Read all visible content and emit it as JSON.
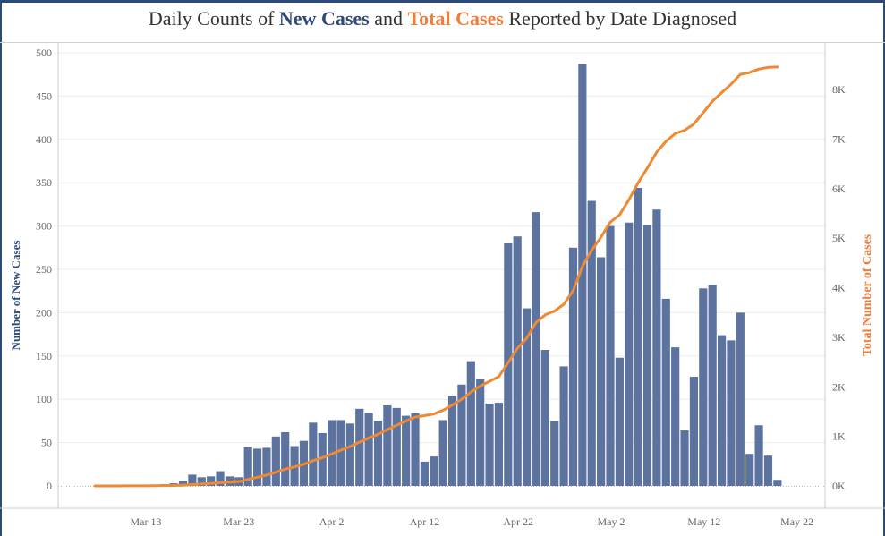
{
  "title": {
    "prefix": "Daily Counts of ",
    "series1": "New Cases",
    "middle": " and ",
    "series2": "Total Cases",
    "suffix": " Reported by Date Diagnosed"
  },
  "colors": {
    "bars": "#5b739e",
    "line": "#ee8a33",
    "new_cases_title": "#2e4a7b",
    "total_cases_title": "#ef7c3a"
  },
  "chart_data": {
    "type": "bar",
    "title": "Daily Counts of New Cases and Total Cases Reported by Date Diagnosed",
    "xlabel": "",
    "ylabel": "Number of New Cases",
    "y2label": "Total Number of Cases",
    "ylim": [
      0,
      500
    ],
    "y2lim": [
      0,
      8750
    ],
    "yticks": [
      "0",
      "50",
      "100",
      "150",
      "200",
      "250",
      "300",
      "350",
      "400",
      "450",
      "500"
    ],
    "y2ticks": [
      "0K",
      "1K",
      "2K",
      "3K",
      "4K",
      "5K",
      "6K",
      "7K",
      "8K"
    ],
    "xticks": [
      "Mar 13",
      "Mar 23",
      "Apr 2",
      "Apr 12",
      "Apr 22",
      "May 2",
      "May 12",
      "May 22"
    ],
    "grid": true,
    "start_date": "Mar 8",
    "categories": [
      "Mar 8",
      "Mar 9",
      "Mar 10",
      "Mar 11",
      "Mar 12",
      "Mar 13",
      "Mar 14",
      "Mar 15",
      "Mar 16",
      "Mar 17",
      "Mar 18",
      "Mar 19",
      "Mar 20",
      "Mar 21",
      "Mar 22",
      "Mar 23",
      "Mar 24",
      "Mar 25",
      "Mar 26",
      "Mar 27",
      "Mar 28",
      "Mar 29",
      "Mar 30",
      "Mar 31",
      "Apr 1",
      "Apr 2",
      "Apr 3",
      "Apr 4",
      "Apr 5",
      "Apr 6",
      "Apr 7",
      "Apr 8",
      "Apr 9",
      "Apr 10",
      "Apr 11",
      "Apr 12",
      "Apr 13",
      "Apr 14",
      "Apr 15",
      "Apr 16",
      "Apr 17",
      "Apr 18",
      "Apr 19",
      "Apr 20",
      "Apr 21",
      "Apr 22",
      "Apr 23",
      "Apr 24",
      "Apr 25",
      "Apr 26",
      "Apr 27",
      "Apr 28",
      "Apr 29",
      "Apr 30",
      "May 1",
      "May 2",
      "May 3",
      "May 4",
      "May 5",
      "May 6",
      "May 7",
      "May 8",
      "May 9",
      "May 10",
      "May 11",
      "May 12",
      "May 13",
      "May 14",
      "May 15",
      "May 16",
      "May 17",
      "May 18",
      "May 19",
      "May 20"
    ],
    "series": [
      {
        "name": "New Cases",
        "type": "bar",
        "values": [
          0,
          0,
          1,
          1,
          1,
          0,
          1,
          2,
          3,
          6,
          13,
          10,
          11,
          17,
          11,
          10,
          45,
          43,
          44,
          57,
          62,
          46,
          52,
          73,
          61,
          76,
          76,
          72,
          89,
          84,
          75,
          93,
          90,
          81,
          84,
          28,
          34,
          76,
          104,
          117,
          144,
          123,
          95,
          96,
          280,
          288,
          205,
          316,
          157,
          75,
          138,
          275,
          487,
          329,
          264,
          300,
          148,
          304,
          344,
          301,
          319,
          216,
          160,
          64,
          126,
          228,
          232,
          174,
          168,
          200,
          37,
          70,
          35,
          7
        ]
      },
      {
        "name": "Total Cases",
        "type": "line",
        "values": [
          0,
          0,
          1,
          2,
          3,
          3,
          4,
          6,
          9,
          15,
          28,
          38,
          49,
          66,
          77,
          87,
          132,
          175,
          219,
          276,
          338,
          384,
          436,
          509,
          570,
          646,
          722,
          794,
          883,
          967,
          1042,
          1135,
          1225,
          1306,
          1390,
          1418,
          1452,
          1528,
          1632,
          1749,
          1893,
          2016,
          2111,
          2207,
          2487,
          2775,
          2980,
          3296,
          3453,
          3528,
          3666,
          3941,
          4428,
          4757,
          5021,
          5321,
          5469,
          5773,
          6117,
          6418,
          6737,
          6953,
          7113,
          7177,
          7303,
          7531,
          7763,
          7937,
          8105,
          8305,
          8342,
          8412,
          8447,
          8454
        ]
      }
    ]
  }
}
